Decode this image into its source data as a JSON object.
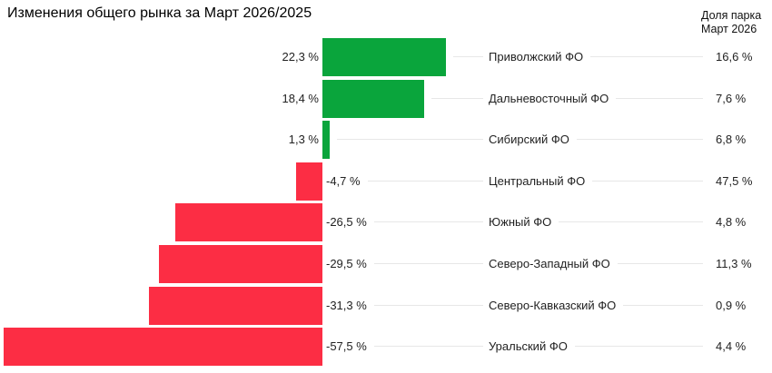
{
  "title": "Изменения общего рынка за Март 2026/2025",
  "share_column": {
    "header_line1": "Доля парка",
    "header_line2": "Март 2026"
  },
  "colors": {
    "positive_bar": "#0aa53c",
    "negative_bar": "#fc2d44",
    "leader_line": "#e7e7e7",
    "text": "#222222"
  },
  "chart_data": {
    "type": "bar",
    "orientation": "horizontal-diverging",
    "title": "Изменения общего рынка за Март 2026/2025",
    "value_suffix": " %",
    "grid": false,
    "xlim": [
      -58.2,
      23
    ],
    "categories": [
      "Приволжский ФО",
      "Дальневосточный ФО",
      "Сибирский ФО",
      "Центральный ФО",
      "Южный ФО",
      "Северо-Западный ФО",
      "Северо-Кавказский ФО",
      "Уральский ФО"
    ],
    "series": [
      {
        "name": "Изменение общего рынка, %",
        "values": [
          22.3,
          18.4,
          1.3,
          -4.7,
          -26.5,
          -29.5,
          -31.3,
          -57.5
        ]
      },
      {
        "name": "Доля парка Март 2026, %",
        "values": [
          16.6,
          7.6,
          6.8,
          47.5,
          4.8,
          11.3,
          0.9,
          4.4
        ]
      }
    ],
    "rows": [
      {
        "region": "Приволжский ФО",
        "change": 22.3,
        "change_label": "22,3 %",
        "share": 16.6,
        "share_label": "16,6 %"
      },
      {
        "region": "Дальневосточный ФО",
        "change": 18.4,
        "change_label": "18,4 %",
        "share": 7.6,
        "share_label": "7,6 %"
      },
      {
        "region": "Сибирский ФО",
        "change": 1.3,
        "change_label": "1,3 %",
        "share": 6.8,
        "share_label": "6,8 %"
      },
      {
        "region": "Центральный ФО",
        "change": -4.7,
        "change_label": "-4,7 %",
        "share": 47.5,
        "share_label": "47,5 %"
      },
      {
        "region": "Южный ФО",
        "change": -26.5,
        "change_label": "-26,5 %",
        "share": 4.8,
        "share_label": "4,8 %"
      },
      {
        "region": "Северо-Западный ФО",
        "change": -29.5,
        "change_label": "-29,5 %",
        "share": 11.3,
        "share_label": "11,3 %"
      },
      {
        "region": "Северо-Кавказский ФО",
        "change": -31.3,
        "change_label": "-31,3 %",
        "share": 0.9,
        "share_label": "0,9 %"
      },
      {
        "region": "Уральский ФО",
        "change": -57.5,
        "change_label": "-57,5 %",
        "share": 4.4,
        "share_label": "4,4 %"
      }
    ]
  }
}
